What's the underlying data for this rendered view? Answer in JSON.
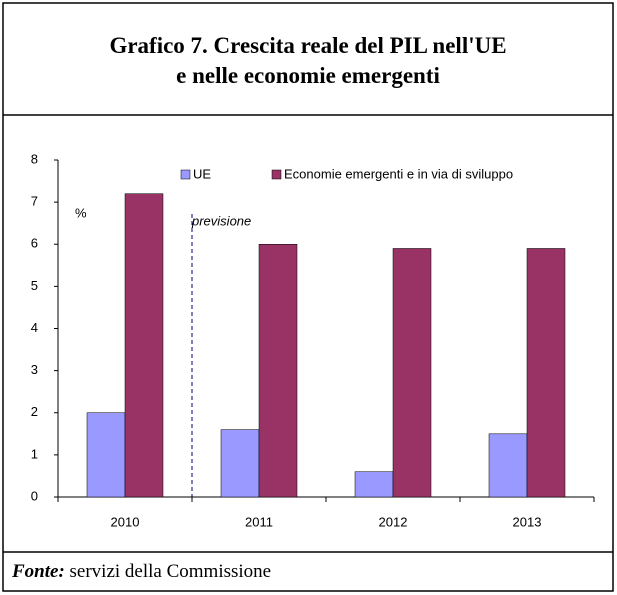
{
  "chart_data": {
    "type": "bar",
    "title": "Grafico 7. Crescita reale del PIL nell'UE e nelle economie emergenti",
    "unit_label": "%",
    "annotation": "previsione",
    "source_label": "Fonte:",
    "source": "servizi della Commissione",
    "categories": [
      "2010",
      "2011",
      "2012",
      "2013"
    ],
    "series": [
      {
        "name": "UE",
        "color": "#9999ff",
        "values": [
          2.0,
          1.6,
          0.6,
          1.5
        ]
      },
      {
        "name": "Economie emergenti e in via di sviluppo",
        "color": "#993366",
        "values": [
          7.2,
          6.0,
          5.9,
          5.9
        ]
      }
    ],
    "ylim": [
      0,
      8
    ],
    "yticks": [
      0,
      1,
      2,
      3,
      4,
      5,
      6,
      7,
      8
    ],
    "grid": false
  }
}
